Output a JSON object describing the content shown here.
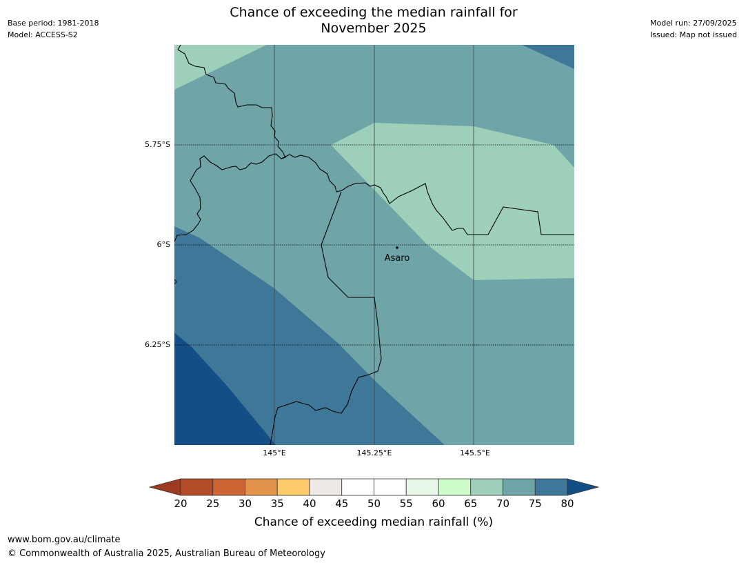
{
  "header": {
    "base_period": "Base period: 1981-2018",
    "model": "Model: ACCESS-S2",
    "model_run": "Model run: 27/09/2025",
    "issued": "Issued: Map not issued",
    "title_line1": "Chance of exceeding the median rainfall for",
    "title_line2": "November 2025"
  },
  "map": {
    "lat_labels": [
      "5.75°S",
      "6°S",
      "6.25°S"
    ],
    "lon_labels": [
      "145°E",
      "145.25°E",
      "145.5°E"
    ],
    "place": {
      "name": "Asaro",
      "lon": 145.3,
      "lat": -6.01
    },
    "extent": {
      "lon_min": 144.75,
      "lon_max": 145.75,
      "lat_min": -6.5,
      "lat_max": -5.5
    },
    "bands": [
      {
        "range": "65-70",
        "color": "#9ecfb9"
      },
      {
        "range": "70-75",
        "color": "#6fa4a8"
      },
      {
        "range": "75-80",
        "color": "#3f7798"
      },
      {
        "range": ">80",
        "color": "#144e87"
      }
    ]
  },
  "colorbar": {
    "label": "Chance of exceeding median rainfall (%)",
    "ticks": [
      "20",
      "25",
      "30",
      "35",
      "40",
      "45",
      "50",
      "55",
      "60",
      "65",
      "70",
      "75",
      "80"
    ],
    "colors": [
      "#b44b27",
      "#cc6533",
      "#e4944a",
      "#fdcb6a",
      "#eee9e6",
      "#ffffff",
      "#ffffff",
      "#e8f6e7",
      "#cbfcc9",
      "#9ecfb9",
      "#6fa4a8",
      "#3f7798"
    ],
    "under_color": "#9c3b22",
    "over_color": "#144e87"
  },
  "footer": {
    "url": "www.bom.gov.au/climate",
    "copyright": "© Commonwealth of Australia 2025, Australian Bureau of Meteorology"
  }
}
